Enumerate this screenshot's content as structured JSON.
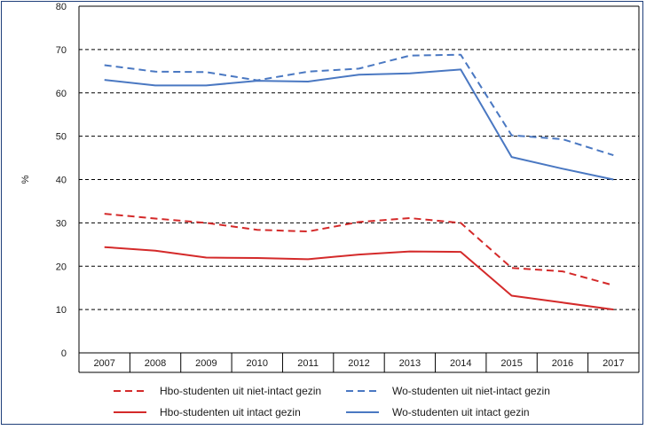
{
  "chart_data": {
    "type": "line",
    "title": "",
    "xlabel": "",
    "ylabel": "%",
    "x": [
      "2007",
      "2008",
      "2009",
      "2010",
      "2011",
      "2012",
      "2013",
      "2014",
      "2015",
      "2016",
      "2017"
    ],
    "ylim": [
      0,
      80
    ],
    "yticks": [
      0,
      10,
      20,
      30,
      40,
      50,
      60,
      70,
      80
    ],
    "grid": "horizontal dashed",
    "legend_position": "bottom",
    "series": [
      {
        "name": "Hbo-studenten uit niet-intact gezin",
        "color": "#d42a2a",
        "style": "dashed",
        "values": [
          32.1,
          31.0,
          30.0,
          28.4,
          28.0,
          30.2,
          31.1,
          30.0,
          19.6,
          18.8,
          15.6
        ]
      },
      {
        "name": "Wo-studenten uit niet-intact gezin",
        "color": "#4a78c2",
        "style": "dashed",
        "values": [
          66.4,
          64.9,
          64.8,
          62.9,
          64.9,
          65.6,
          68.6,
          68.8,
          50.2,
          49.3,
          45.6
        ]
      },
      {
        "name": "Hbo-studenten uit intact gezin",
        "color": "#d42a2a",
        "style": "solid",
        "values": [
          24.4,
          23.6,
          22.0,
          21.9,
          21.6,
          22.7,
          23.4,
          23.3,
          13.2,
          11.6,
          10.0
        ]
      },
      {
        "name": "Wo-studenten uit intact gezin",
        "color": "#4a78c2",
        "style": "solid",
        "values": [
          63.0,
          61.7,
          61.7,
          62.8,
          62.6,
          64.2,
          64.5,
          65.4,
          45.2,
          42.5,
          40.0
        ]
      }
    ]
  }
}
